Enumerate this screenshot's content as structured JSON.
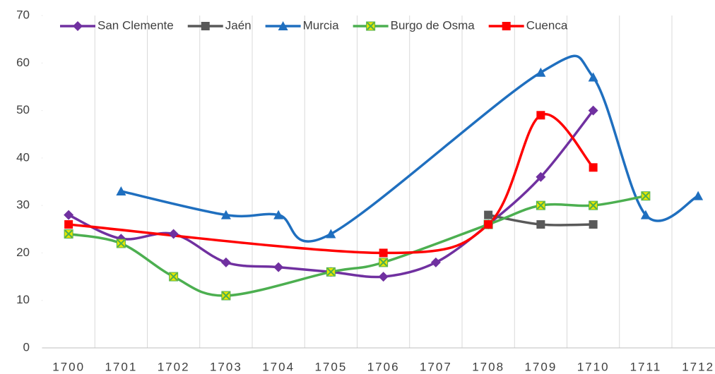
{
  "chart_data": {
    "type": "line",
    "smooth": true,
    "connect_gaps": true,
    "grid": "x",
    "legend": "top",
    "categories": [
      "1700",
      "1701",
      "1702",
      "1703",
      "1704",
      "1705",
      "1706",
      "1707",
      "1708",
      "1709",
      "1710",
      "1711",
      "1712"
    ],
    "ylim": [
      0,
      70
    ],
    "yticks": [
      0,
      10,
      20,
      30,
      40,
      50,
      60,
      70
    ],
    "series": [
      {
        "name": "San Clemente",
        "color": "#7030a0",
        "marker": "diamond",
        "values": [
          28,
          23,
          24,
          18,
          17,
          16,
          15,
          18,
          26,
          36,
          50,
          null,
          null
        ]
      },
      {
        "name": "Jaén",
        "color": "#595959",
        "marker": "square",
        "values": [
          null,
          null,
          null,
          null,
          null,
          null,
          null,
          null,
          28,
          26,
          26,
          null,
          null
        ]
      },
      {
        "name": "Murcia",
        "color": "#1f6fbf",
        "marker": "triangle",
        "values": [
          null,
          33,
          null,
          28,
          28,
          24,
          null,
          null,
          null,
          58,
          57,
          28,
          32
        ]
      },
      {
        "name": "Burgo de Osma",
        "color": "#4caf50",
        "marker": "x-square",
        "marker_fill": "#e6e600",
        "values": [
          24,
          22,
          15,
          11,
          null,
          16,
          18,
          null,
          26,
          30,
          30,
          32,
          null
        ]
      },
      {
        "name": "Cuenca",
        "color": "#ff0000",
        "marker": "square",
        "values": [
          26,
          null,
          null,
          null,
          null,
          null,
          20,
          null,
          26,
          49,
          38,
          null,
          null
        ]
      }
    ]
  }
}
